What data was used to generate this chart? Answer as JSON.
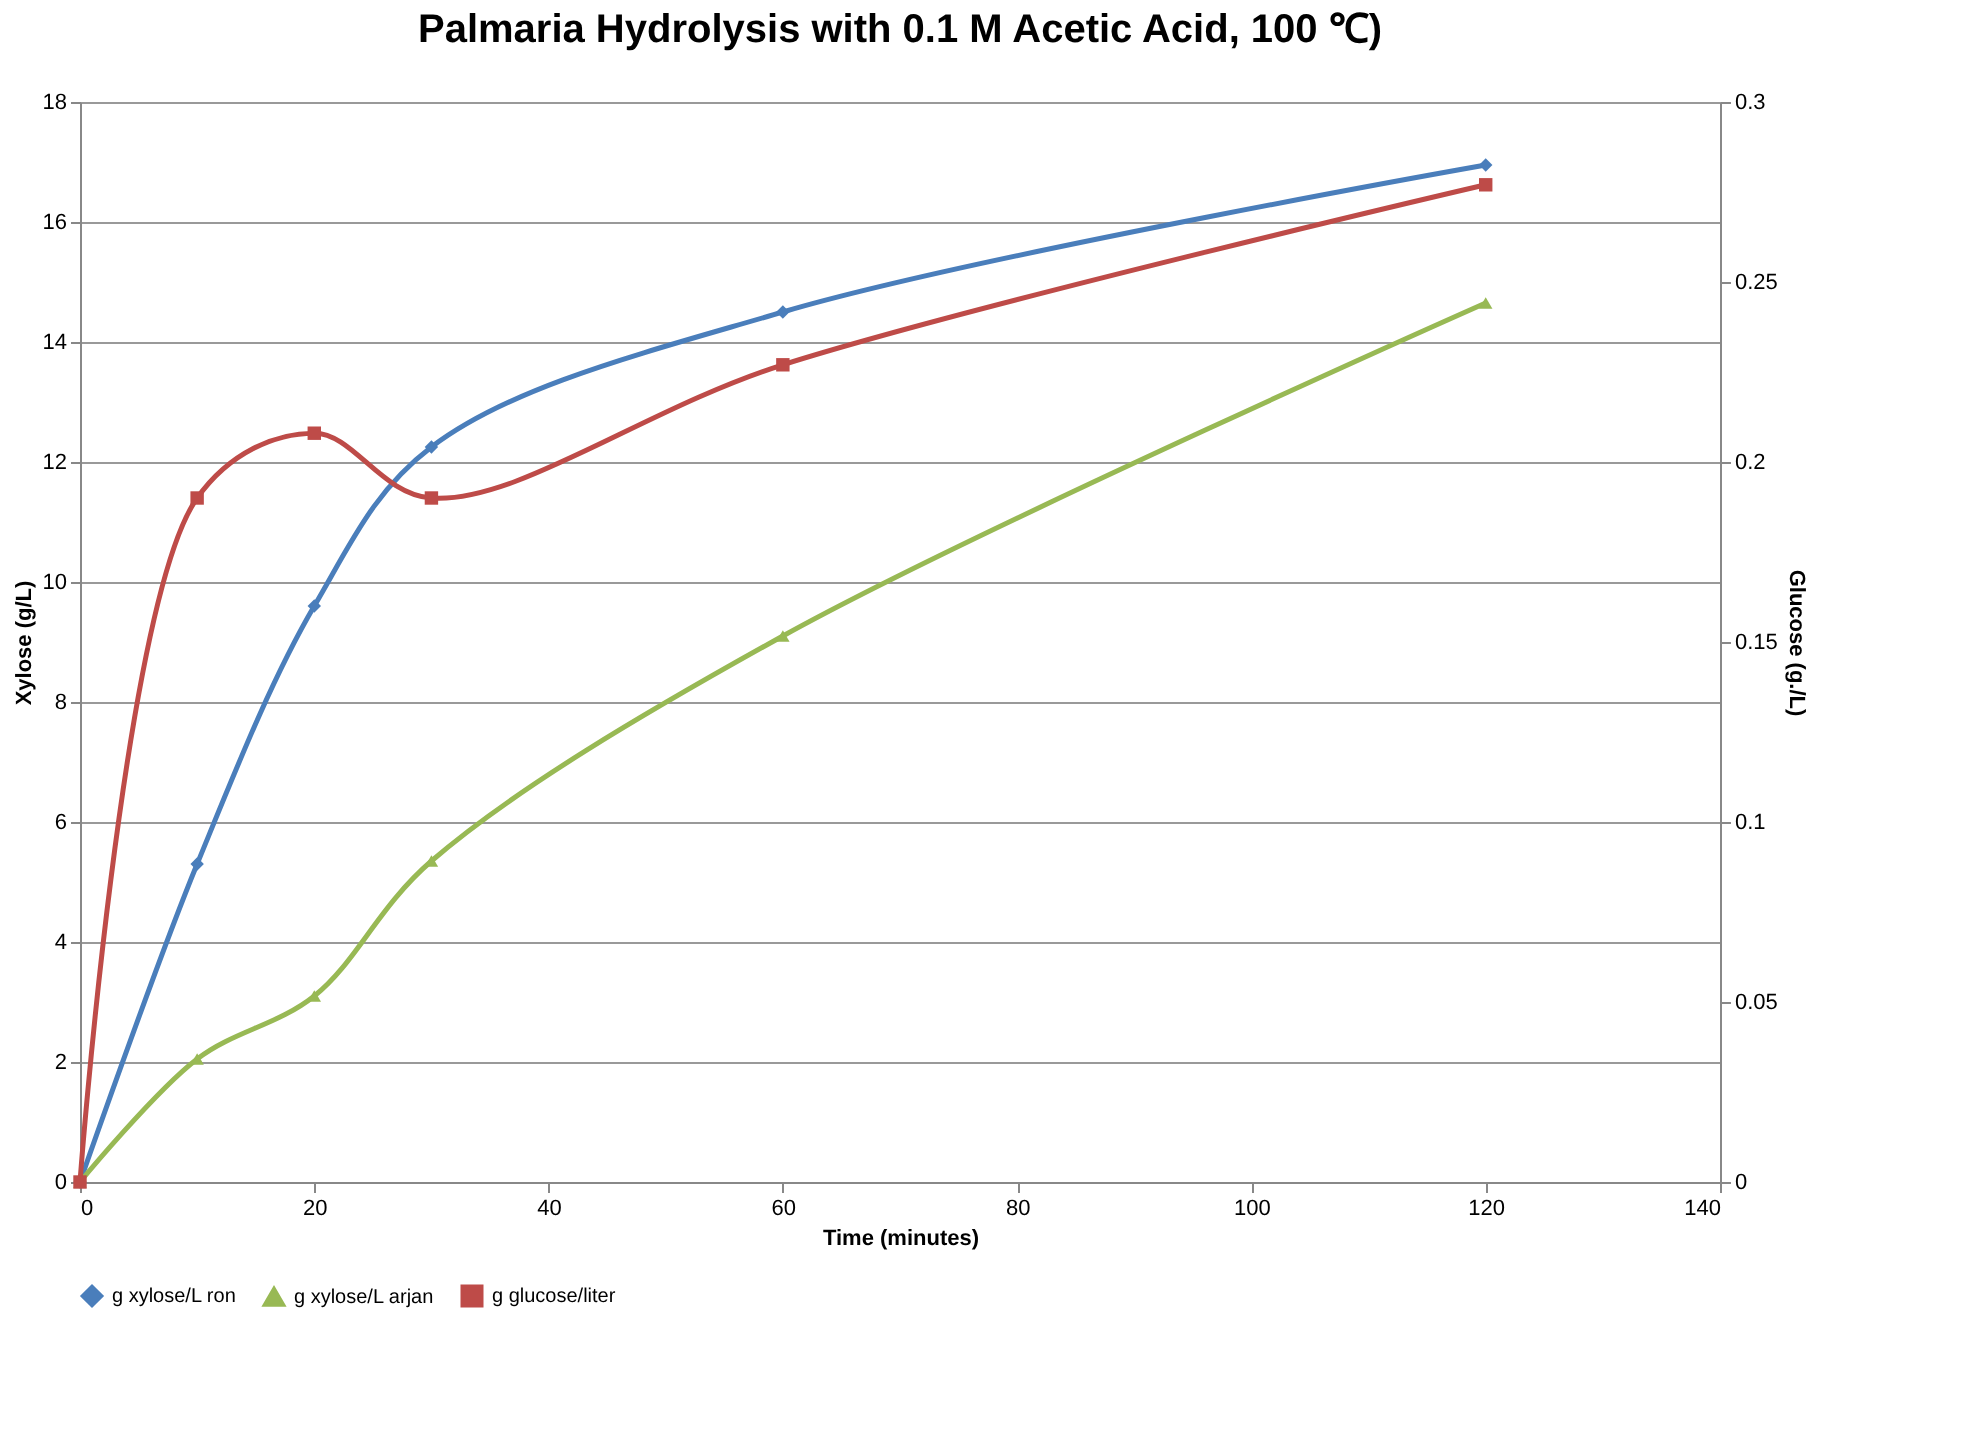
{
  "chart_data": {
    "type": "line",
    "title": "Palmaria Hydrolysis with 0.1 M Acetic Acid, 100 ℃)",
    "xlabel": "Time (minutes)",
    "ylabel": "Xylose  (g/L)",
    "y2label": "Glucose  (g./L)",
    "x": [
      0,
      10,
      20,
      30,
      60,
      120
    ],
    "series": [
      {
        "name": "g xylose/L ron",
        "color": "#4a7ebb",
        "marker": "diamond",
        "values": [
          0,
          5.3,
          9.6,
          12.25,
          14.5,
          16.95
        ]
      },
      {
        "name": "g xylose/L arjan",
        "color": "#98b954",
        "marker": "triangle",
        "values": [
          0,
          2.05,
          3.1,
          5.35,
          9.1,
          14.65
        ]
      },
      {
        "name": "g glucose/liter",
        "color": "#be4b48",
        "marker": "square",
        "axis": "y2",
        "values": [
          0,
          0.19,
          0.208,
          0.19,
          0.227,
          0.277
        ]
      }
    ],
    "xlim": [
      0,
      140
    ],
    "xticks": [
      0,
      20,
      40,
      60,
      80,
      100,
      120,
      140
    ],
    "ylim": [
      0,
      18
    ],
    "yticks": [
      0,
      2,
      4,
      6,
      8,
      10,
      12,
      14,
      16,
      18
    ],
    "y2lim": [
      0,
      0.3
    ],
    "y2ticks": [
      0,
      0.05,
      0.1,
      0.15,
      0.2,
      0.25,
      0.3
    ],
    "grid": "y",
    "legend": "bottom"
  }
}
